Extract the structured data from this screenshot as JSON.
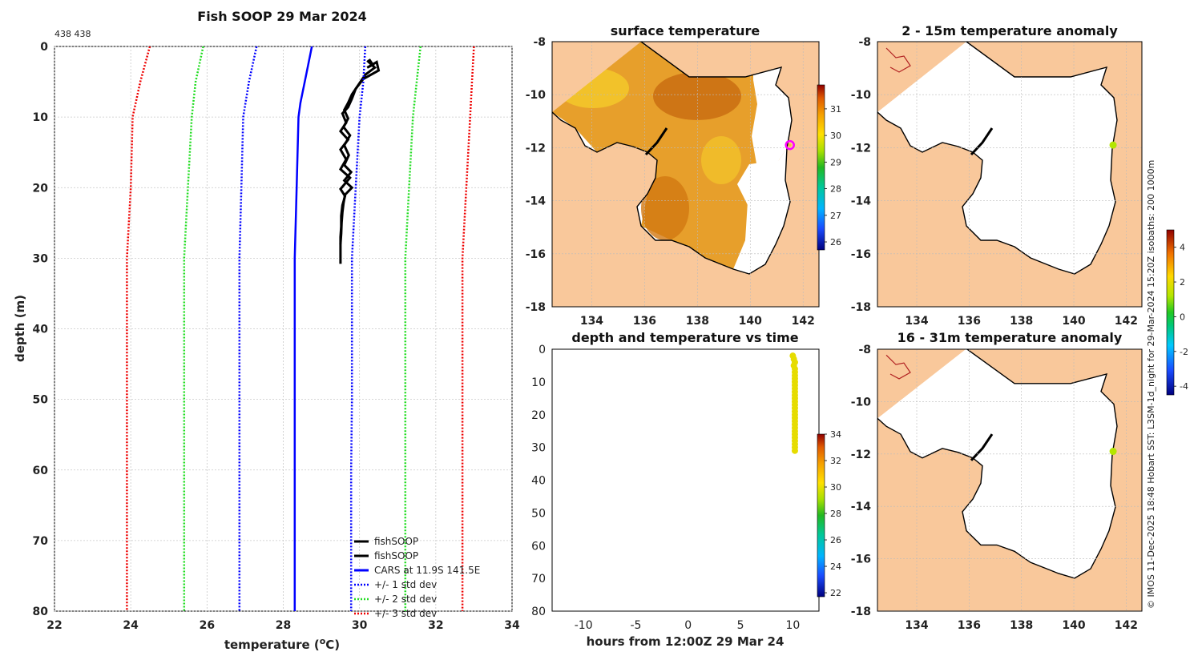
{
  "chart_data": [
    {
      "id": "profile",
      "type": "line",
      "title": "Fish SOOP 29 Mar 2024",
      "corner_label": "438 438",
      "xlabel": "temperature (",
      "xlabel_sup": "o",
      "xlabel_end": "C)",
      "ylabel": "depth (m)",
      "xlim": [
        22,
        34
      ],
      "ylim": [
        0,
        80
      ],
      "y_inverted": true,
      "grid": true,
      "xticks": [
        22,
        24,
        26,
        28,
        30,
        32,
        34
      ],
      "yticks": [
        0,
        10,
        20,
        30,
        40,
        50,
        60,
        70,
        80
      ],
      "legend_position": "bottom-right",
      "series": [
        {
          "name": "fishSOOP",
          "style": "solid",
          "color": "#000000",
          "points": [
            [
              30.25,
              1.8
            ],
            [
              30.35,
              2.6
            ],
            [
              30.2,
              3.0
            ],
            [
              30.45,
              2.2
            ],
            [
              30.5,
              3.4
            ],
            [
              30.1,
              4.6
            ],
            [
              29.9,
              6.0
            ],
            [
              29.8,
              7.4
            ],
            [
              29.7,
              8.6
            ],
            [
              29.55,
              9.5
            ],
            [
              29.65,
              10.8
            ],
            [
              29.5,
              12.0
            ],
            [
              29.7,
              13.2
            ],
            [
              29.5,
              14.6
            ],
            [
              29.65,
              16.0
            ],
            [
              29.5,
              17.4
            ],
            [
              29.75,
              18.6
            ],
            [
              29.5,
              20.2
            ],
            [
              29.62,
              21.2
            ],
            [
              29.55,
              22.5
            ],
            [
              29.52,
              24.0
            ],
            [
              29.52,
              25.5
            ],
            [
              29.5,
              27.0
            ],
            [
              29.5,
              28.5
            ],
            [
              29.5,
              30.8
            ]
          ]
        },
        {
          "name": "fishSOOP",
          "style": "solid",
          "color": "#000000",
          "points": [
            [
              30.2,
              2.0
            ],
            [
              30.4,
              3.0
            ],
            [
              30.15,
              4.0
            ],
            [
              30.0,
              5.2
            ],
            [
              29.8,
              6.8
            ],
            [
              29.7,
              8.0
            ],
            [
              29.6,
              9.0
            ],
            [
              29.7,
              10.2
            ],
            [
              29.58,
              11.4
            ],
            [
              29.75,
              12.6
            ],
            [
              29.6,
              14.0
            ],
            [
              29.72,
              15.4
            ],
            [
              29.6,
              16.8
            ],
            [
              29.78,
              17.8
            ],
            [
              29.6,
              19.0
            ],
            [
              29.8,
              20.0
            ],
            [
              29.62,
              21.0
            ],
            [
              29.58,
              22.2
            ],
            [
              29.55,
              23.5
            ],
            [
              29.53,
              25.0
            ],
            [
              29.52,
              26.5
            ],
            [
              29.5,
              28.0
            ]
          ]
        },
        {
          "name": "CARS at 11.9S 141.5E",
          "style": "solid",
          "color": "#0000ff",
          "points": [
            [
              28.75,
              0
            ],
            [
              28.6,
              4
            ],
            [
              28.45,
              8
            ],
            [
              28.4,
              10
            ],
            [
              28.35,
              20
            ],
            [
              28.3,
              30
            ],
            [
              28.3,
              40
            ],
            [
              28.3,
              50
            ],
            [
              28.3,
              60
            ],
            [
              28.3,
              70
            ],
            [
              28.3,
              80
            ]
          ]
        },
        {
          "name": "+/- 1 std dev",
          "style": "dotted",
          "color": "#0000ff",
          "points": [
            [
              27.3,
              0
            ],
            [
              27.1,
              5
            ],
            [
              26.95,
              10
            ],
            [
              26.9,
              20
            ],
            [
              26.85,
              30
            ],
            [
              26.85,
              40
            ],
            [
              26.85,
              50
            ],
            [
              26.85,
              60
            ],
            [
              26.85,
              70
            ],
            [
              26.85,
              80
            ]
          ]
        },
        {
          "name": "+/- 1 std dev",
          "style": "dotted",
          "color": "#0000ff",
          "legend": false,
          "points": [
            [
              30.15,
              0
            ],
            [
              30.1,
              5
            ],
            [
              30.0,
              10
            ],
            [
              29.9,
              20
            ],
            [
              29.8,
              30
            ],
            [
              29.8,
              40
            ],
            [
              29.8,
              50
            ],
            [
              29.78,
              60
            ],
            [
              29.78,
              70
            ],
            [
              29.78,
              80
            ]
          ]
        },
        {
          "name": "+/- 2 std dev",
          "style": "dotted",
          "color": "#22dd22",
          "points": [
            [
              25.9,
              0
            ],
            [
              25.7,
              5
            ],
            [
              25.6,
              10
            ],
            [
              25.5,
              20
            ],
            [
              25.4,
              30
            ],
            [
              25.4,
              40
            ],
            [
              25.4,
              50
            ],
            [
              25.4,
              60
            ],
            [
              25.4,
              70
            ],
            [
              25.4,
              80
            ]
          ]
        },
        {
          "name": "+/- 2 std dev",
          "style": "dotted",
          "color": "#22dd22",
          "legend": false,
          "points": [
            [
              31.6,
              0
            ],
            [
              31.5,
              5
            ],
            [
              31.4,
              10
            ],
            [
              31.3,
              20
            ],
            [
              31.2,
              30
            ],
            [
              31.2,
              40
            ],
            [
              31.2,
              50
            ],
            [
              31.2,
              60
            ],
            [
              31.2,
              70
            ],
            [
              31.2,
              80
            ]
          ]
        },
        {
          "name": "+/- 3 std dev",
          "style": "dotted",
          "color": "#ee0000",
          "points": [
            [
              24.5,
              0
            ],
            [
              24.25,
              5
            ],
            [
              24.05,
              10
            ],
            [
              24.0,
              20
            ],
            [
              23.9,
              30
            ],
            [
              23.9,
              40
            ],
            [
              23.9,
              50
            ],
            [
              23.9,
              60
            ],
            [
              23.9,
              70
            ],
            [
              23.9,
              80
            ]
          ]
        },
        {
          "name": "+/- 3 std dev",
          "style": "dotted",
          "color": "#ee0000",
          "legend": false,
          "points": [
            [
              33.0,
              0
            ],
            [
              32.95,
              5
            ],
            [
              32.9,
              10
            ],
            [
              32.8,
              20
            ],
            [
              32.7,
              30
            ],
            [
              32.7,
              40
            ],
            [
              32.7,
              50
            ],
            [
              32.7,
              60
            ],
            [
              32.7,
              70
            ],
            [
              32.7,
              80
            ]
          ]
        }
      ]
    },
    {
      "id": "sst_map",
      "type": "heatmap",
      "title": "surface temperature",
      "xlim": [
        132.5,
        142.6
      ],
      "ylim": [
        -18,
        -8
      ],
      "xticks": [
        134,
        136,
        138,
        140,
        142
      ],
      "yticks": [
        -8,
        -10,
        -12,
        -14,
        -16,
        -18
      ],
      "colorbar": {
        "min": 25.7,
        "max": 31.9,
        "ticks": [
          26,
          27,
          28,
          29,
          30,
          31
        ]
      },
      "marker": {
        "lon": 141.5,
        "lat": -11.9,
        "color": "#ff00ff"
      }
    },
    {
      "id": "time_depth",
      "type": "scatter",
      "title": "depth and temperature vs time",
      "xlabel": "hours from 12:00Z 29 Mar 24",
      "xlim": [
        -13,
        12.5
      ],
      "ylim": [
        0,
        80
      ],
      "y_inverted": true,
      "xticks": [
        -10,
        -5,
        0,
        5,
        10
      ],
      "yticks": [
        0,
        10,
        20,
        30,
        40,
        50,
        60,
        70,
        80
      ],
      "colorbar": {
        "min": 21.7,
        "max": 34,
        "ticks": [
          22,
          24,
          26,
          28,
          30,
          32,
          34
        ]
      },
      "points": [
        [
          10,
          2
        ],
        [
          10.1,
          3
        ],
        [
          10.2,
          4
        ],
        [
          10.1,
          5
        ],
        [
          10.2,
          6
        ],
        [
          10.2,
          7
        ],
        [
          10.2,
          8
        ],
        [
          10.2,
          9
        ],
        [
          10.2,
          10
        ],
        [
          10.2,
          11
        ],
        [
          10.2,
          12
        ],
        [
          10.2,
          13
        ],
        [
          10.2,
          14
        ],
        [
          10.2,
          15
        ],
        [
          10.2,
          16
        ],
        [
          10.2,
          17
        ],
        [
          10.2,
          18
        ],
        [
          10.2,
          19
        ],
        [
          10.2,
          20
        ],
        [
          10.2,
          21
        ],
        [
          10.2,
          22
        ],
        [
          10.2,
          23
        ],
        [
          10.2,
          24
        ],
        [
          10.2,
          25
        ],
        [
          10.2,
          26
        ],
        [
          10.2,
          27
        ],
        [
          10.2,
          28
        ],
        [
          10.2,
          29
        ],
        [
          10.2,
          30
        ],
        [
          10.2,
          31
        ]
      ],
      "point_value": 30.2
    },
    {
      "id": "anom_2_15",
      "type": "heatmap",
      "title": "2 - 15m temperature anomaly",
      "xlim": [
        132.5,
        142.6
      ],
      "ylim": [
        -18,
        -8
      ],
      "xticks": [
        134,
        136,
        138,
        140,
        142
      ],
      "yticks": [
        -8,
        -10,
        -12,
        -14,
        -16,
        -18
      ],
      "marker": {
        "lon": 141.5,
        "lat": -11.9,
        "value": 1.3
      }
    },
    {
      "id": "anom_16_31",
      "type": "heatmap",
      "title": "16 - 31m temperature anomaly",
      "xlim": [
        132.5,
        142.6
      ],
      "ylim": [
        -18,
        -8
      ],
      "xticks": [
        134,
        136,
        138,
        140,
        142
      ],
      "yticks": [
        -8,
        -10,
        -12,
        -14,
        -16,
        -18
      ],
      "marker": {
        "lon": 141.5,
        "lat": -11.9,
        "value": 1.3
      }
    },
    {
      "id": "anom_colorbar",
      "type": "heatmap",
      "colorbar": {
        "min": -4.5,
        "max": 5.0,
        "ticks": [
          -4,
          -2,
          0,
          2,
          4
        ]
      }
    }
  ],
  "credit": "© IMOS 11-Dec-2025 18:48 Hobart SST: L3SM-1d_night for 29-Mar-2024 15:20Z isobaths: 200  1000m",
  "colors": {
    "land": "#f9c89b",
    "coast": "#000000",
    "grid": "#cccccc"
  }
}
